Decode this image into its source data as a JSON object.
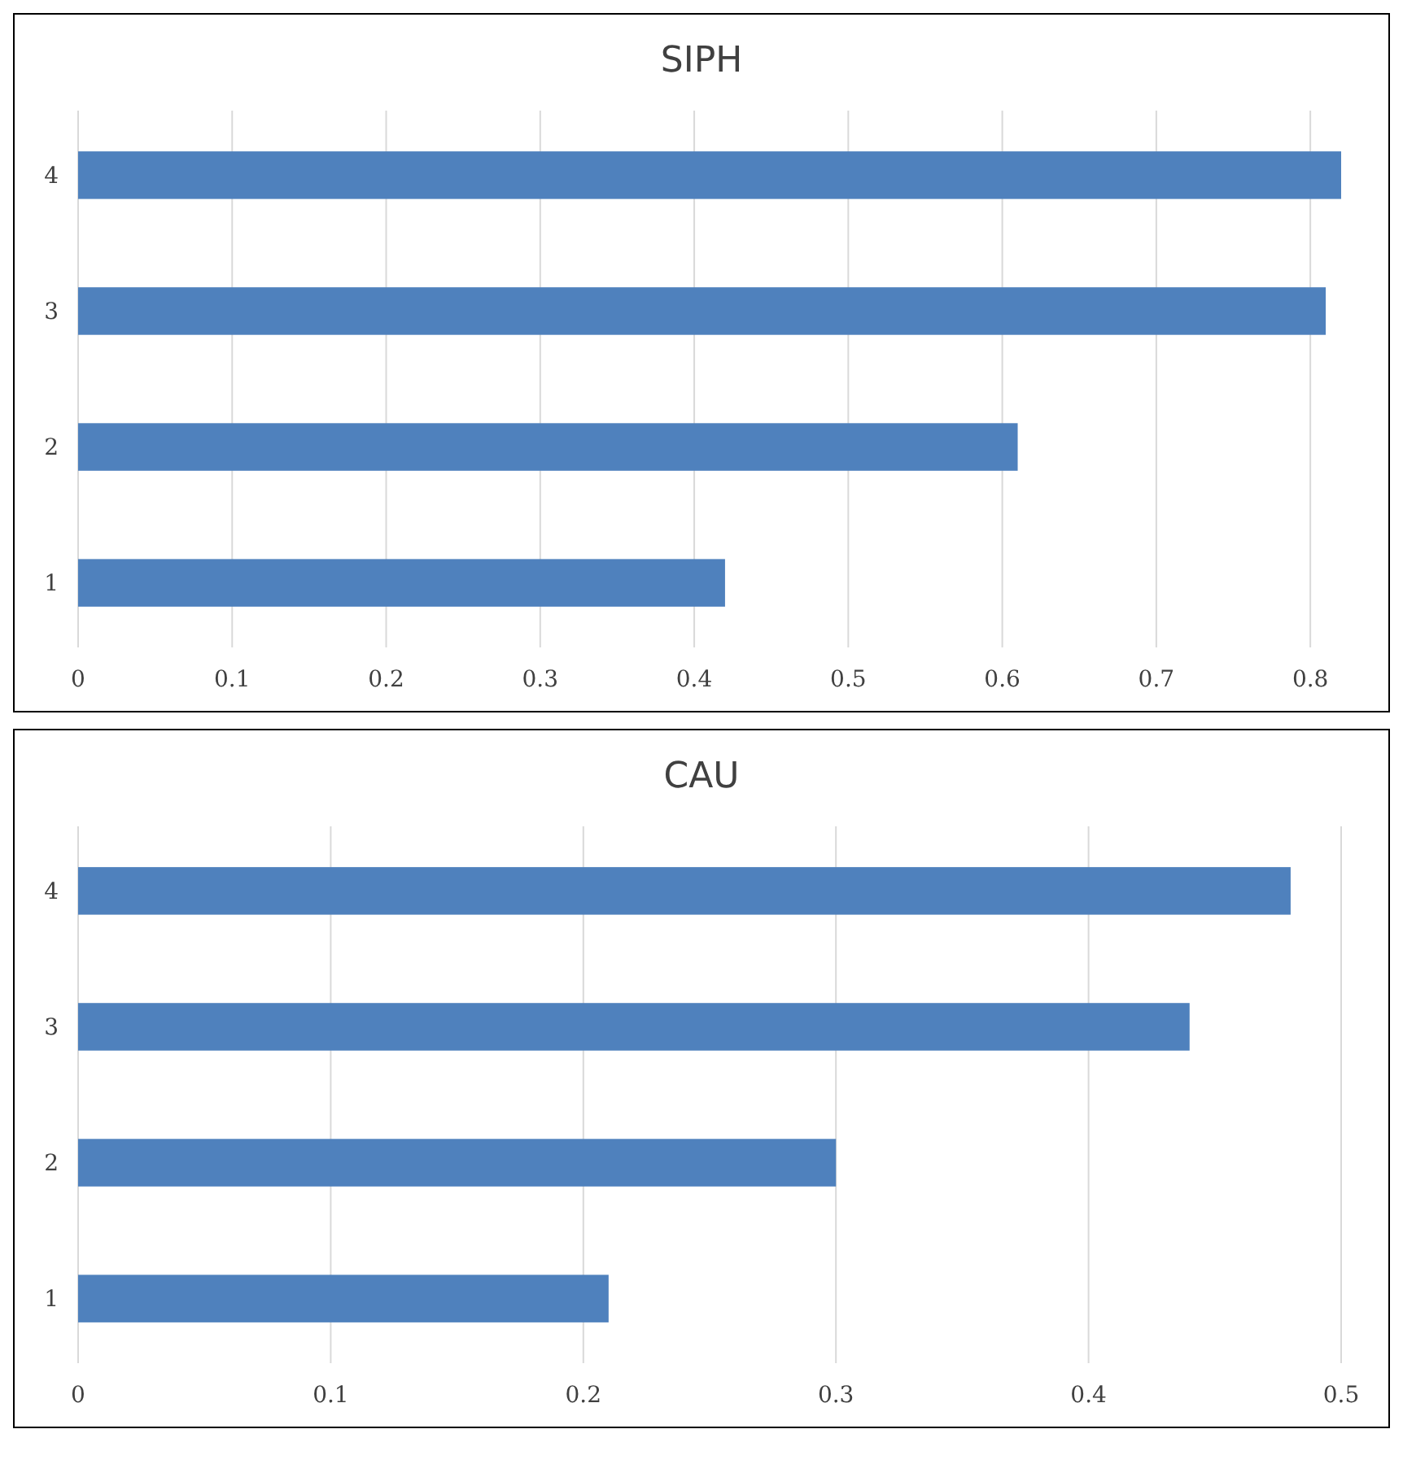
{
  "chart_data": [
    {
      "type": "bar",
      "orientation": "horizontal",
      "title": "SIPH",
      "categories": [
        "4",
        "3",
        "2",
        "1"
      ],
      "values": [
        0.82,
        0.81,
        0.61,
        0.42
      ],
      "color": "#4f81bd",
      "xlim": [
        0,
        0.82
      ],
      "xticks": [
        0,
        0.1,
        0.2,
        0.3,
        0.4,
        0.5,
        0.6,
        0.7,
        0.8
      ],
      "grid": "x"
    },
    {
      "type": "bar",
      "orientation": "horizontal",
      "title": "CAU",
      "categories": [
        "4",
        "3",
        "2",
        "1"
      ],
      "values": [
        0.48,
        0.44,
        0.3,
        0.21
      ],
      "color": "#4f81bd",
      "xlim": [
        0,
        0.5
      ],
      "xticks": [
        0,
        0.1,
        0.2,
        0.3,
        0.4,
        0.5
      ],
      "grid": "x"
    }
  ]
}
